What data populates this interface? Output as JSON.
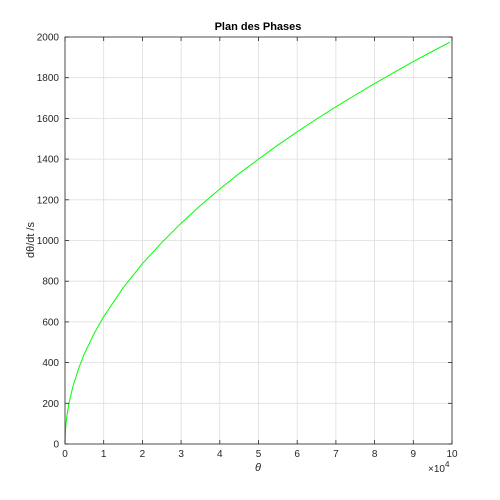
{
  "chart_data": {
    "type": "line",
    "title": "Plan des Phases",
    "xlabel": "θ",
    "ylabel": "dθ/dt /s",
    "x_exponent_label": "×10",
    "x_exponent_power": "4",
    "xlim": [
      0,
      10
    ],
    "ylim": [
      0,
      2000
    ],
    "x_ticks": [
      "0",
      "1",
      "2",
      "3",
      "4",
      "5",
      "6",
      "7",
      "8",
      "9",
      "10"
    ],
    "y_ticks": [
      "0",
      "200",
      "400",
      "600",
      "800",
      "1000",
      "1200",
      "1400",
      "1600",
      "1800",
      "2000"
    ],
    "grid": true,
    "series": [
      {
        "color": "#00ff00",
        "x": [
          0,
          0.02,
          0.05,
          0.1,
          0.2,
          0.35,
          0.5,
          0.75,
          1,
          1.5,
          2,
          2.5,
          3,
          3.5,
          4,
          4.5,
          5,
          5.5,
          6,
          6.5,
          7,
          7.5,
          8,
          8.5,
          9,
          9.5,
          9.95
        ],
        "y": [
          0,
          89,
          140,
          198,
          280,
          370,
          443,
          542,
          626,
          767,
          886,
          990,
          1085,
          1172,
          1253,
          1329,
          1400,
          1469,
          1534,
          1597,
          1657,
          1715,
          1771,
          1826,
          1879,
          1930,
          1975
        ]
      }
    ]
  }
}
